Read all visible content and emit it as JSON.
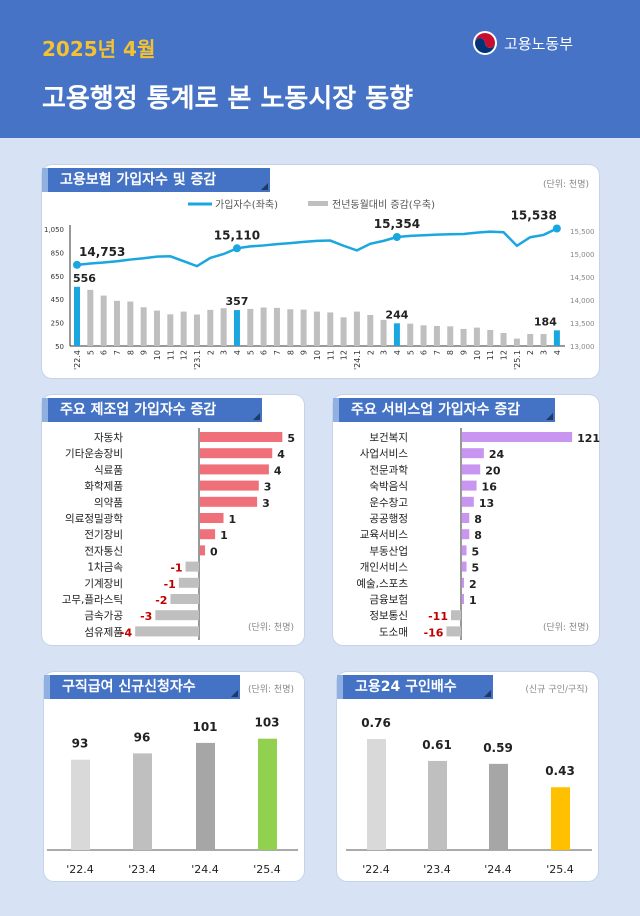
{
  "header": {
    "year": "2025년 4월",
    "title": "고용행정 통계로 본 노동시장 동향",
    "ministry": "고용노동부"
  },
  "colors": {
    "header": "#4673c5",
    "tab": "#4472c4",
    "highlight": "#1aa7e0",
    "gray": "#bfbfbf",
    "manufacturing": "#f0707a",
    "services": "#c896f0",
    "negative_label": "#c00000",
    "green": "#92d050",
    "yellow": "#ffc000"
  },
  "chart_data": [
    {
      "type": "bar+line",
      "title": "고용보험 가입자수 및 증감",
      "unit": "(단위: 천명)",
      "legend": {
        "line": "가입자수(좌축)",
        "bars": "전년동월대비 증감(우축)",
        "placement": "top"
      },
      "categories": [
        "'22.4",
        "5",
        "6",
        "7",
        "8",
        "9",
        "10",
        "11",
        "12",
        "'23.1",
        "2",
        "3",
        "4",
        "5",
        "6",
        "7",
        "8",
        "9",
        "10",
        "11",
        "12",
        "'24.1",
        "2",
        "3",
        "4",
        "5",
        "6",
        "7",
        "8",
        "9",
        "10",
        "11",
        "12",
        "'25.1",
        "2",
        "3",
        "4"
      ],
      "left_ticks": [
        "1,050",
        "850",
        "650",
        "450",
        "250",
        "50"
      ],
      "left_range": [
        50,
        1050
      ],
      "right_ticks": [
        "15,500",
        "15,000",
        "14,500",
        "14,000",
        "13,500",
        "13,000"
      ],
      "right_range": [
        13000,
        15500
      ],
      "bars": [
        556,
        530,
        481,
        436,
        430,
        381,
        353,
        321,
        344,
        319,
        359,
        373,
        357,
        367,
        379,
        376,
        364,
        361,
        344,
        337,
        295,
        344,
        315,
        273,
        244,
        241,
        227,
        221,
        218,
        196,
        207,
        187,
        161,
        113,
        153,
        153,
        184
      ],
      "line": [
        14753,
        14781,
        14803,
        14831,
        14867,
        14895,
        14931,
        14938,
        14831,
        14725,
        14902,
        14987,
        15110,
        15151,
        15172,
        15200,
        15222,
        15250,
        15271,
        15278,
        15165,
        15065,
        15207,
        15271,
        15354,
        15378,
        15392,
        15406,
        15413,
        15420,
        15449,
        15470,
        15456,
        15165,
        15349,
        15399,
        15538
      ],
      "highlight_index": [
        0,
        12,
        24,
        36
      ],
      "bar_labels": [
        "556",
        "357",
        "244",
        "184"
      ],
      "line_labels": [
        "14,753",
        "15,110",
        "15,354",
        "15,538"
      ]
    },
    {
      "type": "bar",
      "orientation": "horizontal",
      "title": "주요 제조업 가입자수 증감",
      "unit": "(단위: 천명)",
      "categories": [
        "자동차",
        "기타운송장비",
        "식료품",
        "화학제품",
        "의약품",
        "의료정밀광학",
        "전기장비",
        "전자통신",
        "1차금속",
        "기계장비",
        "고무,플라스틱",
        "금속가공",
        "섬유제품"
      ],
      "values": [
        5,
        4,
        4,
        3,
        3,
        1,
        1,
        0,
        -1,
        -1,
        -2,
        -3,
        -4
      ],
      "bar_values": [
        4.9,
        4.3,
        4.1,
        3.5,
        3.4,
        1.4,
        0.9,
        0.3,
        -0.8,
        -1.2,
        -1.7,
        -2.6,
        -3.8
      ]
    },
    {
      "type": "bar",
      "orientation": "horizontal",
      "title": "주요 서비스업 가입자수 증감",
      "unit": "(단위: 천명)",
      "categories": [
        "보건복지",
        "사업서비스",
        "전문과학",
        "숙박음식",
        "운수창고",
        "공공행정",
        "교육서비스",
        "부동산업",
        "개인서비스",
        "예술,스포츠",
        "금융보험",
        "정보통신",
        "도소매"
      ],
      "values": [
        121,
        24,
        20,
        16,
        13,
        8,
        8,
        5,
        5,
        2,
        1,
        -11,
        -16
      ]
    },
    {
      "type": "bar",
      "title": "구직급여 신규신청자수",
      "unit": "(단위: 천명)",
      "categories": [
        "'22.4",
        "'23.4",
        "'24.4",
        "'25.4"
      ],
      "values": [
        93,
        96,
        101,
        103
      ],
      "colors": [
        "#d9d9d9",
        "#bfbfbf",
        "#a6a6a6",
        "#92d050"
      ]
    },
    {
      "type": "bar",
      "title": "고용24 구인배수",
      "unit": "(신규 구인/구직)",
      "categories": [
        "'22.4",
        "'23.4",
        "'24.4",
        "'25.4"
      ],
      "values": [
        0.76,
        0.61,
        0.59,
        0.43
      ],
      "colors": [
        "#d9d9d9",
        "#bfbfbf",
        "#a6a6a6",
        "#ffc000"
      ]
    }
  ]
}
